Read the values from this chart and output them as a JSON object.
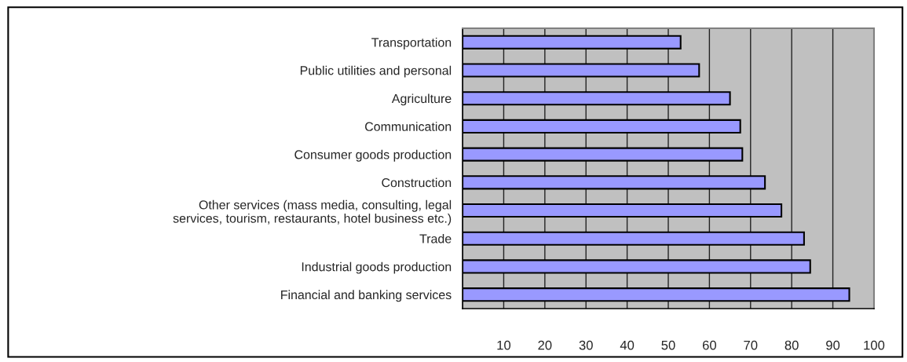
{
  "chart_data": {
    "type": "bar",
    "orientation": "horizontal",
    "categories": [
      "Transportation",
      "Public utilities and personal",
      "Agriculture",
      "Communication",
      "Consumer goods production",
      "Construction",
      "Other services (mass media, consulting, legal\nservices, tourism, restaurants, hotel business etc.)",
      "Trade",
      "Industrial goods production",
      "Financial and banking services"
    ],
    "values": [
      53,
      57.5,
      65,
      67.5,
      68,
      73.5,
      77.5,
      83,
      84.5,
      94
    ],
    "color": "#9999ff",
    "xlim": [
      0,
      100
    ],
    "xticks": [
      {
        "value": 0,
        "label": null
      },
      10,
      20,
      30,
      40,
      50,
      60,
      70,
      80,
      90,
      100
    ],
    "grid": "x"
  }
}
